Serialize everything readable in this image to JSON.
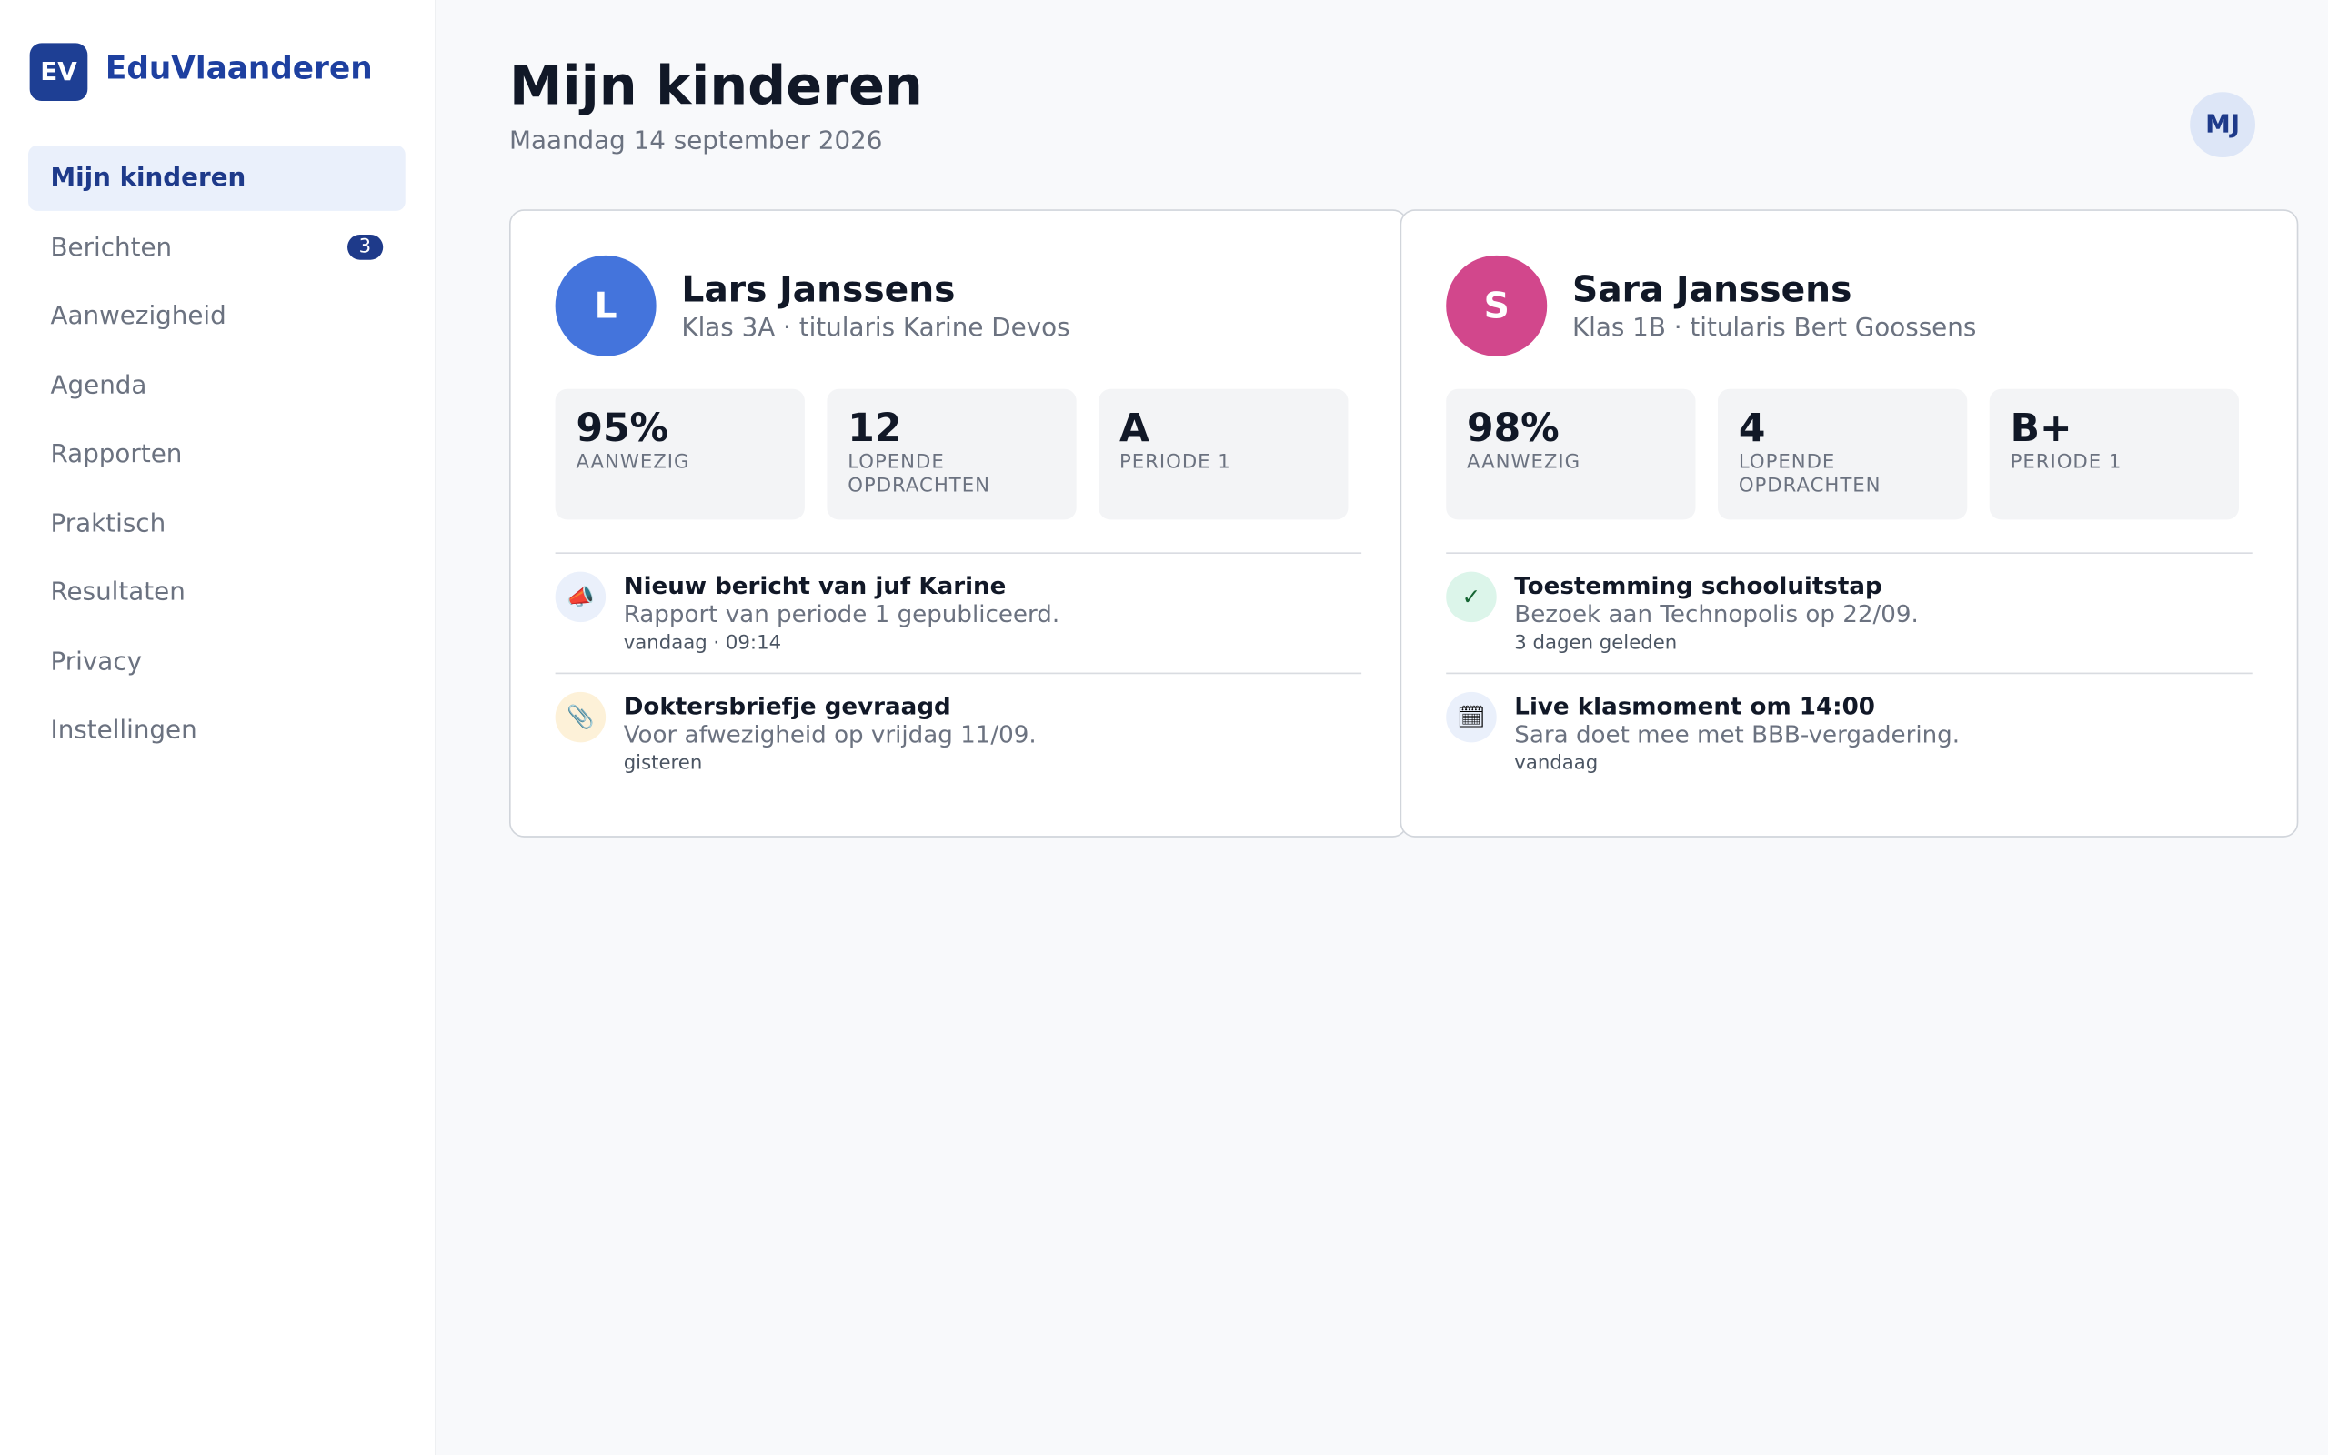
{
  "brand": {
    "logo": "EV",
    "name": "EduVlaanderen"
  },
  "nav": [
    {
      "label": "Mijn kinderen"
    },
    {
      "label": "Berichten",
      "badge": "3"
    },
    {
      "label": "Aanwezigheid"
    },
    {
      "label": "Agenda"
    },
    {
      "label": "Rapporten"
    },
    {
      "label": "Praktisch"
    },
    {
      "label": "Resultaten"
    },
    {
      "label": "Privacy"
    },
    {
      "label": "Instellingen"
    }
  ],
  "header": {
    "title": "Mijn kinderen",
    "date": "Maandag 14 september 2026",
    "user_initials": "MJ"
  },
  "children": [
    {
      "initial": "L",
      "name": "Lars Janssens",
      "class": "Klas 3A · titularis Karine Devos",
      "stats": [
        {
          "value": "95%",
          "label": "Aanwezig"
        },
        {
          "value": "12",
          "label": "Lopende opdrachten"
        },
        {
          "value": "A",
          "label": "Periode 1"
        }
      ],
      "items": [
        {
          "title": "Nieuw bericht van juf Karine",
          "text": "Rapport van periode 1 gepubliceerd.",
          "time": "vandaag · 09:14"
        },
        {
          "title": "Doktersbriefje gevraagd",
          "text": "Voor afwezigheid op vrijdag 11/09.",
          "time": "gisteren"
        }
      ]
    },
    {
      "initial": "S",
      "name": "Sara Janssens",
      "class": "Klas 1B · titularis Bert Goossens",
      "stats": [
        {
          "value": "98%",
          "label": "Aanwezig"
        },
        {
          "value": "4",
          "label": "Lopende opdrachten"
        },
        {
          "value": "B+",
          "label": "Periode 1"
        }
      ],
      "items": [
        {
          "title": "Toestemming schooluitstap",
          "text": "Bezoek aan Technopolis op 22/09.",
          "time": "3 dagen geleden"
        },
        {
          "title": "Live klasmoment om 14:00",
          "text": "Sara doet mee met BBB-vergadering.",
          "time": "vandaag"
        }
      ]
    }
  ]
}
